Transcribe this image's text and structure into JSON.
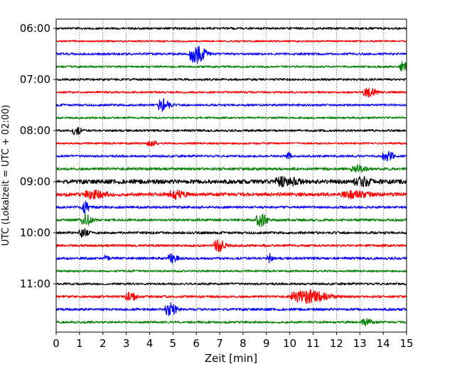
{
  "chart_data": {
    "type": "line",
    "title": "",
    "xlabel": "Zeit  [min]",
    "ylabel": "UTC (Lokalzeit = UTC + 02:00)",
    "xlim": [
      0,
      15
    ],
    "x_ticks": [
      "0",
      "1",
      "2",
      "3",
      "4",
      "5",
      "6",
      "7",
      "8",
      "9",
      "10",
      "11",
      "12",
      "13",
      "14",
      "15"
    ],
    "y_ticks": [
      "06:00",
      "07:00",
      "08:00",
      "09:00",
      "10:00",
      "11:00"
    ],
    "grid": "vertical dotted at each minute",
    "line_interval_minutes": 15,
    "time_range": [
      "06:00",
      "12:00"
    ],
    "series": [
      {
        "start": "06:00",
        "color": "#000000",
        "noise": 0.22,
        "events": []
      },
      {
        "start": "06:15",
        "color": "#ff0000",
        "noise": 0.18,
        "events": []
      },
      {
        "start": "06:30",
        "color": "#0000ff",
        "noise": 0.22,
        "events": [
          {
            "t": 5.9,
            "amp": 1.8,
            "dur": 0.7
          }
        ]
      },
      {
        "start": "06:45",
        "color": "#008000",
        "noise": 0.2,
        "events": [
          {
            "t": 14.8,
            "amp": 0.9,
            "dur": 0.4
          }
        ]
      },
      {
        "start": "07:00",
        "color": "#000000",
        "noise": 0.22,
        "events": []
      },
      {
        "start": "07:15",
        "color": "#ff0000",
        "noise": 0.2,
        "events": [
          {
            "t": 13.3,
            "amp": 0.8,
            "dur": 0.6
          }
        ]
      },
      {
        "start": "07:30",
        "color": "#0000ff",
        "noise": 0.22,
        "events": [
          {
            "t": 4.5,
            "amp": 1.4,
            "dur": 0.5
          }
        ]
      },
      {
        "start": "07:45",
        "color": "#008000",
        "noise": 0.2,
        "events": []
      },
      {
        "start": "08:00",
        "color": "#000000",
        "noise": 0.22,
        "events": [
          {
            "t": 0.8,
            "amp": 0.8,
            "dur": 0.4
          }
        ]
      },
      {
        "start": "08:15",
        "color": "#ff0000",
        "noise": 0.2,
        "events": [
          {
            "t": 4.0,
            "amp": 0.6,
            "dur": 0.4
          }
        ]
      },
      {
        "start": "08:30",
        "color": "#0000ff",
        "noise": 0.22,
        "events": [
          {
            "t": 9.9,
            "amp": 0.7,
            "dur": 0.2
          },
          {
            "t": 14.1,
            "amp": 0.9,
            "dur": 0.5
          }
        ]
      },
      {
        "start": "08:45",
        "color": "#008000",
        "noise": 0.28,
        "events": [
          {
            "t": 12.8,
            "amp": 0.6,
            "dur": 0.6
          }
        ]
      },
      {
        "start": "09:00",
        "color": "#000000",
        "noise": 0.42,
        "events": [
          {
            "t": 9.7,
            "amp": 0.8,
            "dur": 1.0
          },
          {
            "t": 13.0,
            "amp": 0.7,
            "dur": 0.8
          }
        ]
      },
      {
        "start": "09:15",
        "color": "#ff0000",
        "noise": 0.35,
        "events": [
          {
            "t": 1.5,
            "amp": 0.7,
            "dur": 0.9
          },
          {
            "t": 5.0,
            "amp": 0.7,
            "dur": 0.7
          },
          {
            "t": 12.5,
            "amp": 0.6,
            "dur": 1.2
          }
        ]
      },
      {
        "start": "09:30",
        "color": "#0000ff",
        "noise": 0.25,
        "events": [
          {
            "t": 1.2,
            "amp": 1.4,
            "dur": 0.3
          }
        ]
      },
      {
        "start": "09:45",
        "color": "#008000",
        "noise": 0.25,
        "events": [
          {
            "t": 1.2,
            "amp": 1.6,
            "dur": 0.4
          },
          {
            "t": 8.7,
            "amp": 1.2,
            "dur": 0.5
          }
        ]
      },
      {
        "start": "10:00",
        "color": "#000000",
        "noise": 0.25,
        "events": [
          {
            "t": 1.1,
            "amp": 0.8,
            "dur": 0.4
          }
        ]
      },
      {
        "start": "10:15",
        "color": "#ff0000",
        "noise": 0.25,
        "events": [
          {
            "t": 6.9,
            "amp": 1.1,
            "dur": 0.5
          }
        ]
      },
      {
        "start": "10:30",
        "color": "#0000ff",
        "noise": 0.25,
        "events": [
          {
            "t": 2.1,
            "amp": 0.6,
            "dur": 0.2
          },
          {
            "t": 4.9,
            "amp": 0.8,
            "dur": 0.4
          },
          {
            "t": 9.1,
            "amp": 0.8,
            "dur": 0.2
          }
        ]
      },
      {
        "start": "10:45",
        "color": "#008000",
        "noise": 0.2,
        "events": []
      },
      {
        "start": "11:00",
        "color": "#000000",
        "noise": 0.22,
        "events": []
      },
      {
        "start": "11:15",
        "color": "#ff0000",
        "noise": 0.25,
        "events": [
          {
            "t": 3.1,
            "amp": 0.7,
            "dur": 0.5
          },
          {
            "t": 10.5,
            "amp": 1.2,
            "dur": 1.6
          }
        ]
      },
      {
        "start": "11:30",
        "color": "#0000ff",
        "noise": 0.25,
        "events": [
          {
            "t": 4.8,
            "amp": 1.2,
            "dur": 0.5
          }
        ]
      },
      {
        "start": "11:45",
        "color": "#008000",
        "noise": 0.22,
        "events": [
          {
            "t": 13.2,
            "amp": 0.6,
            "dur": 0.5
          }
        ]
      }
    ]
  }
}
